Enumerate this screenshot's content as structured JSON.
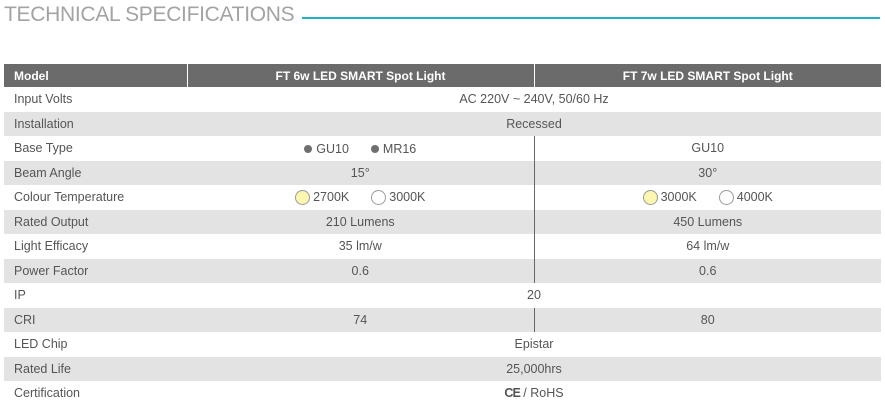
{
  "title": "TECHNICAL SPECIFICATIONS",
  "colors": {
    "accent_line": "#1fb2c4",
    "header_bg": "#6b6b6b",
    "stripe": "#e3e3e3",
    "warm_white": "#fdf6b0",
    "cool_white": "#ffffff"
  },
  "table": {
    "headers": [
      "Model",
      "FT 6w LED SMART Spot Light",
      "FT  7w LED SMART Spot Light"
    ],
    "rows": {
      "input_volts": {
        "label": "Input Volts",
        "value": "AC 220V ~ 240V, 50/60 Hz"
      },
      "installation": {
        "label": "Installation",
        "value": "Recessed"
      },
      "base_type": {
        "label": "Base Type",
        "a1": "GU10",
        "a2": "MR16",
        "b": "GU10"
      },
      "beam_angle": {
        "label": "Beam Angle",
        "a": "15°",
        "b": "30°"
      },
      "colour_temp": {
        "label": "Colour Temperature",
        "a1": "2700K",
        "a2": "3000K",
        "b1": "3000K",
        "b2": "4000K"
      },
      "rated_output": {
        "label": "Rated Output",
        "a": "210 Lumens",
        "b": "450 Lumens"
      },
      "light_efficacy": {
        "label": "Light Efficacy",
        "a": "35 lm/w",
        "b": "64 lm/w"
      },
      "power_factor": {
        "label": "Power Factor",
        "a": "0.6",
        "b": "0.6"
      },
      "ip": {
        "label": "IP",
        "value": "20"
      },
      "cri": {
        "label": "CRI",
        "a": "74",
        "b": "80"
      },
      "led_chip": {
        "label": "LED Chip",
        "value": "Epistar"
      },
      "rated_life": {
        "label": "Rated Life",
        "value": "25,000hrs"
      },
      "certification": {
        "label": "Certification",
        "ce": "CE",
        "value": " / RoHS"
      }
    }
  }
}
